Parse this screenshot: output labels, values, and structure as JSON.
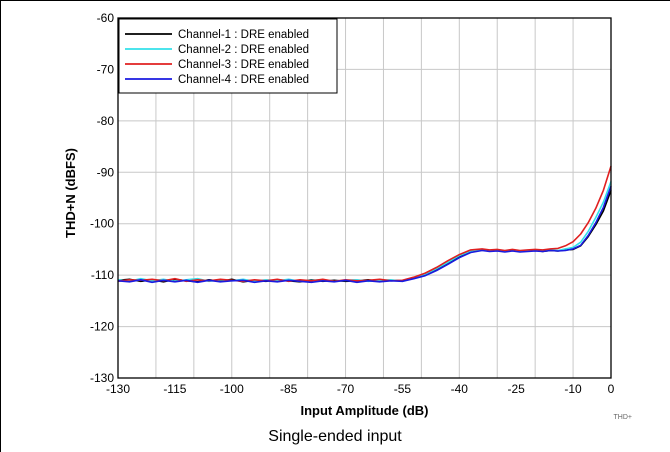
{
  "caption": "Single-ended input",
  "chart_data": {
    "type": "line",
    "title": "",
    "xlabel": "Input Amplitude (dB)",
    "ylabel": "THD+N (dBFS)",
    "xlim": [
      -130,
      0
    ],
    "ylim": [
      -130,
      -60
    ],
    "xticks": [
      -130,
      -115,
      -100,
      -85,
      -70,
      -55,
      -40,
      -25,
      -10,
      0
    ],
    "yticks": [
      -60,
      -70,
      -80,
      -90,
      -100,
      -110,
      -120,
      -130
    ],
    "grid": true,
    "legend_position": "top-left",
    "figure_tag": "THD+",
    "series": [
      {
        "name": "Channel-1 : DRE enabled",
        "color": "#000000",
        "x": [
          -130,
          -127,
          -124,
          -121,
          -118,
          -115,
          -112,
          -109,
          -106,
          -103,
          -100,
          -97,
          -94,
          -91,
          -88,
          -85,
          -82,
          -79,
          -76,
          -73,
          -70,
          -67,
          -64,
          -61,
          -58,
          -55,
          -52,
          -49,
          -46,
          -43,
          -40,
          -37,
          -34,
          -32,
          -30,
          -28,
          -26,
          -24,
          -22,
          -20,
          -18,
          -16,
          -14,
          -12,
          -10,
          -8,
          -6,
          -4,
          -2,
          0
        ],
        "y": [
          -111,
          -110.8,
          -111.2,
          -110.9,
          -111.3,
          -110.8,
          -111.1,
          -111.3,
          -110.9,
          -111.2,
          -110.8,
          -111.3,
          -111,
          -111.2,
          -110.9,
          -111.1,
          -111.3,
          -110.9,
          -111.2,
          -111,
          -111.2,
          -111.1,
          -110.9,
          -111.2,
          -111,
          -111.1,
          -110.6,
          -110,
          -109,
          -107.8,
          -106.5,
          -105.5,
          -105.1,
          -105.3,
          -105.2,
          -105.4,
          -105.2,
          -105.4,
          -105.3,
          -105.2,
          -105.4,
          -105.2,
          -105.3,
          -105.1,
          -105,
          -104.3,
          -102.5,
          -100.2,
          -97.5,
          -93.5
        ]
      },
      {
        "name": "Channel-2 : DRE enabled",
        "color": "#33e0ea",
        "x": [
          -130,
          -127,
          -124,
          -121,
          -118,
          -115,
          -112,
          -109,
          -106,
          -103,
          -100,
          -97,
          -94,
          -91,
          -88,
          -85,
          -82,
          -79,
          -76,
          -73,
          -70,
          -67,
          -64,
          -61,
          -58,
          -55,
          -52,
          -49,
          -46,
          -43,
          -40,
          -37,
          -34,
          -32,
          -30,
          -28,
          -26,
          -24,
          -22,
          -20,
          -18,
          -16,
          -14,
          -12,
          -10,
          -8,
          -6,
          -4,
          -2,
          0
        ],
        "y": [
          -110.9,
          -111.2,
          -110.7,
          -111.1,
          -110.8,
          -111.2,
          -110.9,
          -110.7,
          -111.2,
          -110.9,
          -111.1,
          -110.8,
          -111.2,
          -110.9,
          -111.1,
          -110.8,
          -111.2,
          -111,
          -110.9,
          -111.2,
          -111,
          -110.9,
          -111.2,
          -111,
          -110.9,
          -111.2,
          -110.5,
          -109.8,
          -108.7,
          -107.5,
          -106.2,
          -105.3,
          -105,
          -105.2,
          -105.1,
          -105.3,
          -105.1,
          -105.3,
          -105.2,
          -105.1,
          -105.3,
          -105.1,
          -105.2,
          -104.9,
          -104.6,
          -103.6,
          -101.5,
          -98.8,
          -95.8,
          -91.8
        ]
      },
      {
        "name": "Channel-3 : DRE enabled",
        "color": "#e02020",
        "x": [
          -130,
          -127,
          -124,
          -121,
          -118,
          -115,
          -112,
          -109,
          -106,
          -103,
          -100,
          -97,
          -94,
          -91,
          -88,
          -85,
          -82,
          -79,
          -76,
          -73,
          -70,
          -67,
          -64,
          -61,
          -58,
          -55,
          -52,
          -49,
          -46,
          -43,
          -40,
          -37,
          -34,
          -32,
          -30,
          -28,
          -26,
          -24,
          -22,
          -20,
          -18,
          -16,
          -14,
          -12,
          -10,
          -8,
          -6,
          -4,
          -2,
          0
        ],
        "y": [
          -111.2,
          -110.9,
          -111,
          -110.8,
          -111.1,
          -110.7,
          -111.2,
          -110.9,
          -111.1,
          -110.8,
          -111,
          -111.2,
          -110.9,
          -111.1,
          -110.8,
          -111.2,
          -110.9,
          -111.1,
          -110.8,
          -111.2,
          -110.9,
          -111.1,
          -111,
          -110.8,
          -111.1,
          -111,
          -110.4,
          -109.6,
          -108.5,
          -107.2,
          -106,
          -105.1,
          -104.9,
          -105.1,
          -105,
          -105.2,
          -105,
          -105.2,
          -105.1,
          -105,
          -105.1,
          -104.9,
          -104.8,
          -104.3,
          -103.5,
          -102,
          -99.8,
          -97,
          -93.5,
          -88.8
        ]
      },
      {
        "name": "Channel-4 : DRE enabled",
        "color": "#1a1ae0",
        "x": [
          -130,
          -127,
          -124,
          -121,
          -118,
          -115,
          -112,
          -109,
          -106,
          -103,
          -100,
          -97,
          -94,
          -91,
          -88,
          -85,
          -82,
          -79,
          -76,
          -73,
          -70,
          -67,
          -64,
          -61,
          -58,
          -55,
          -52,
          -49,
          -46,
          -43,
          -40,
          -37,
          -34,
          -32,
          -30,
          -28,
          -26,
          -24,
          -22,
          -20,
          -18,
          -16,
          -14,
          -12,
          -10,
          -8,
          -6,
          -4,
          -2,
          0
        ],
        "y": [
          -111.1,
          -111.3,
          -110.9,
          -111.4,
          -111,
          -111.3,
          -111,
          -111.4,
          -111,
          -111.3,
          -111.1,
          -111,
          -111.4,
          -111.1,
          -111.3,
          -111,
          -111.2,
          -111.4,
          -111.1,
          -111.3,
          -111,
          -111.4,
          -111.1,
          -111.3,
          -111.1,
          -111.2,
          -110.7,
          -110.1,
          -109.1,
          -107.9,
          -106.6,
          -105.6,
          -105.2,
          -105.4,
          -105.3,
          -105.5,
          -105.3,
          -105.5,
          -105.4,
          -105.3,
          -105.4,
          -105.2,
          -105.3,
          -105.2,
          -104.9,
          -104.2,
          -102.3,
          -99.8,
          -96.8,
          -92.7
        ]
      }
    ]
  }
}
